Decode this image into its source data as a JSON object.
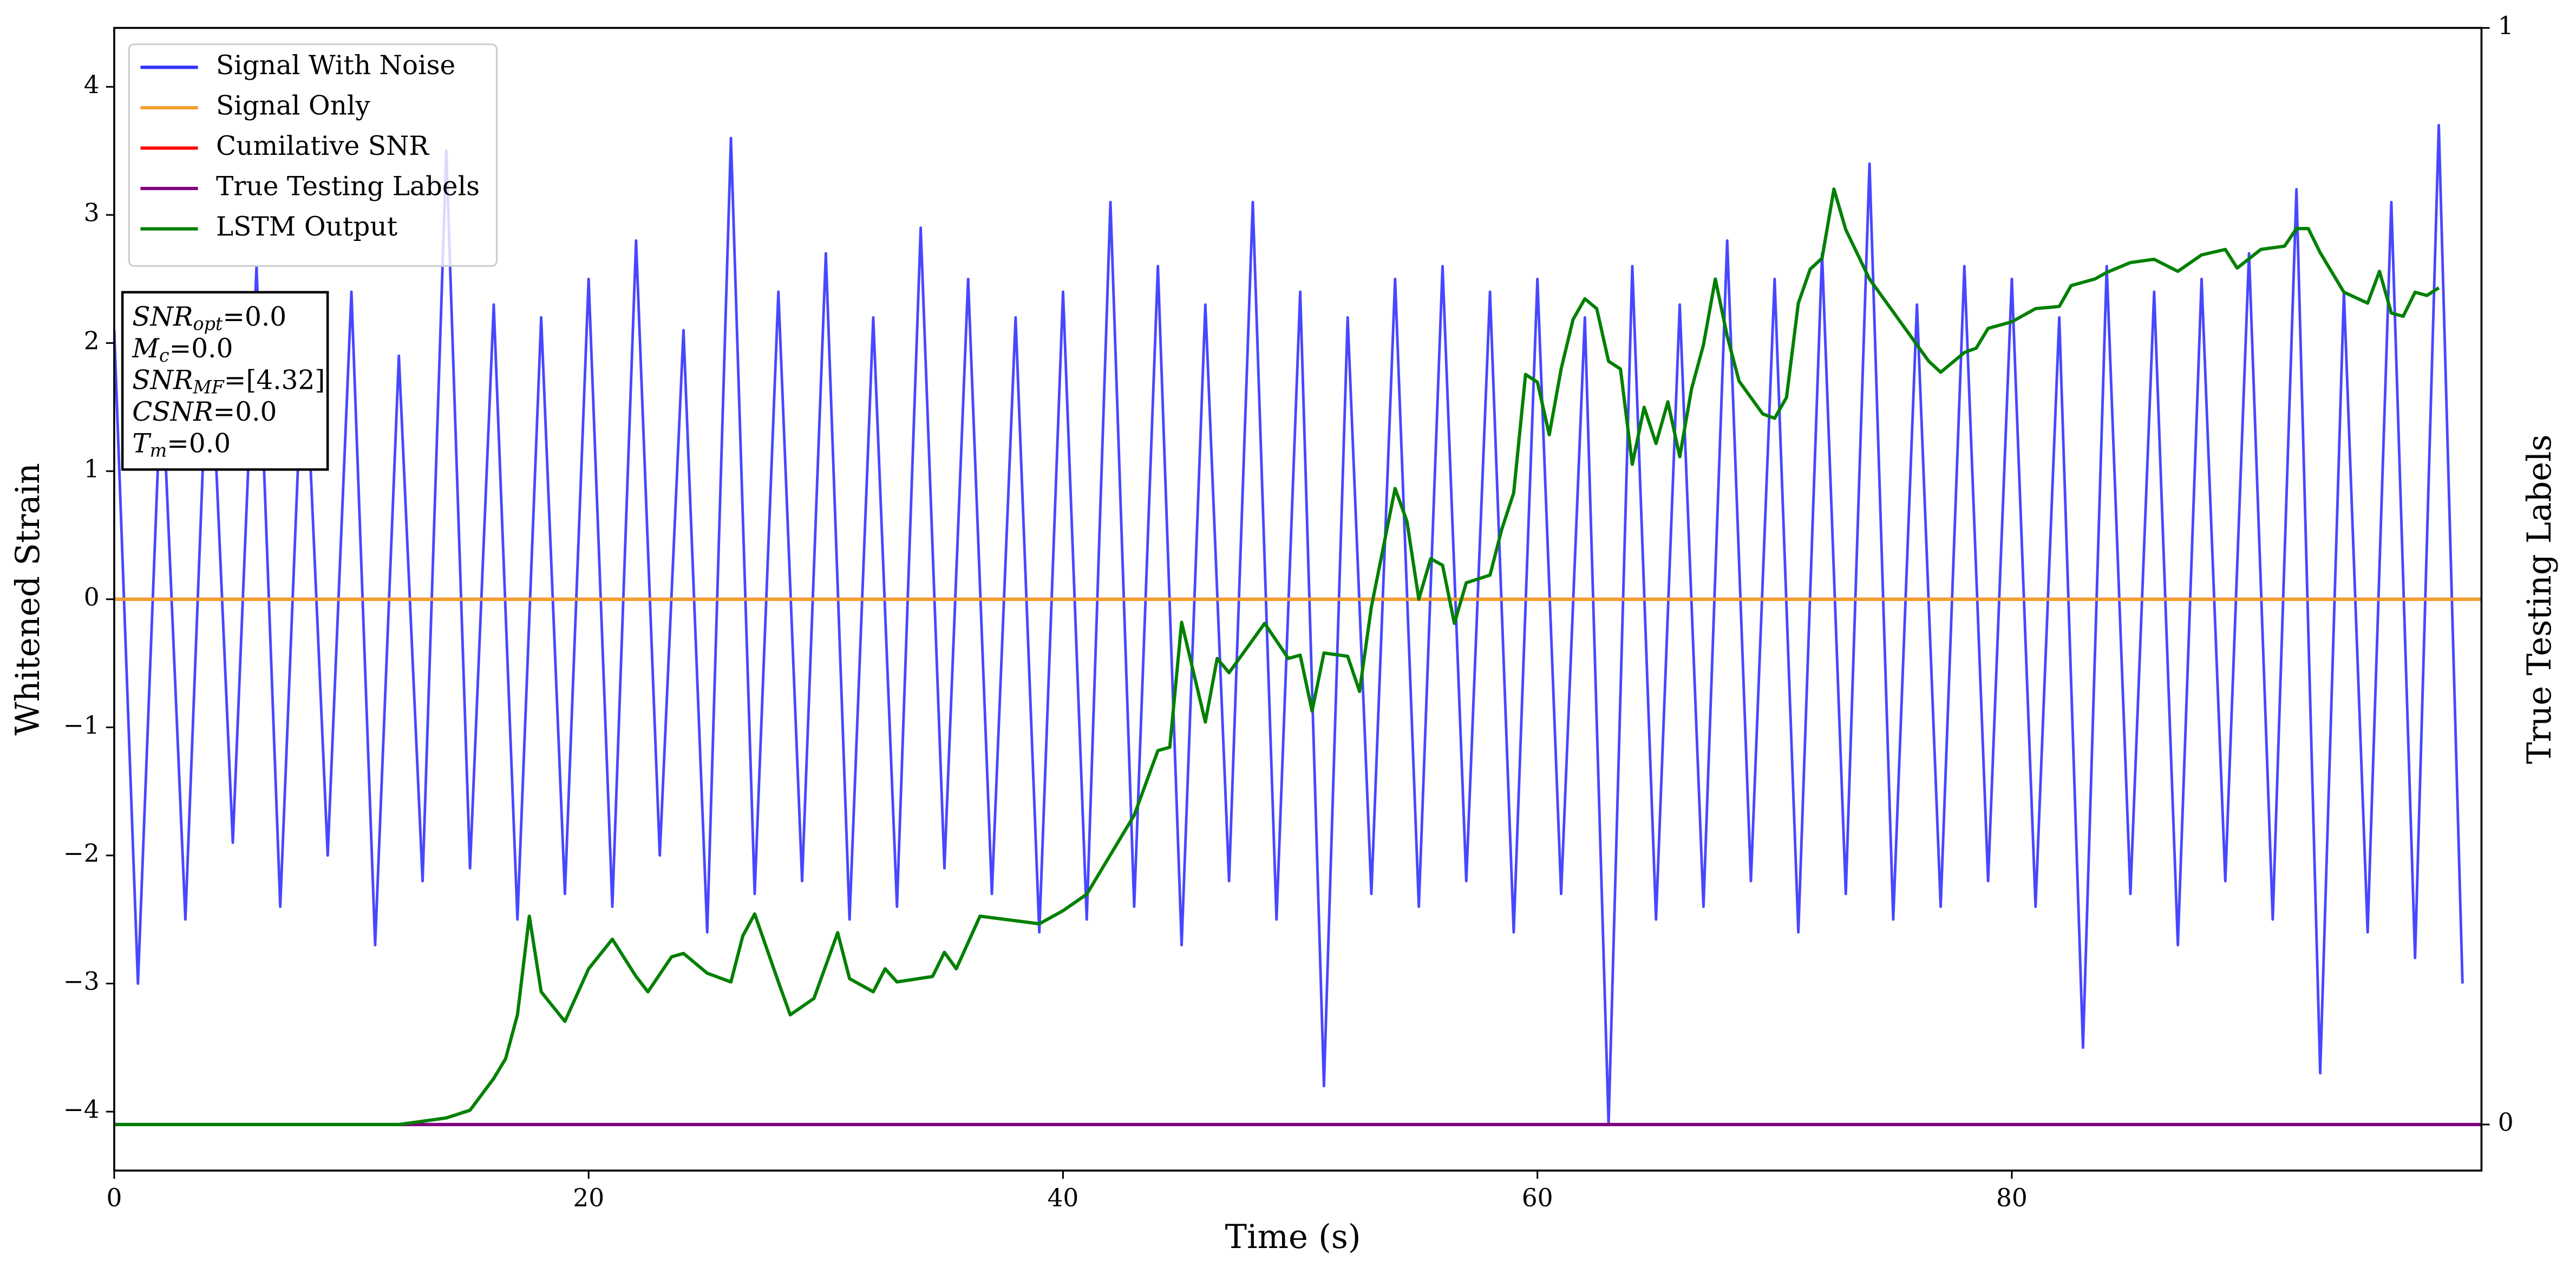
{
  "chart_data": {
    "type": "line",
    "xlabel": "Time (s)",
    "ylabel": "Whitened Strain",
    "y2label": "True Testing Labels",
    "xlim": [
      0,
      99.8
    ],
    "ylim": [
      -4.46,
      4.46
    ],
    "y2lim": [
      -0.042,
      1
    ],
    "xticks": [
      0,
      20,
      40,
      60,
      80
    ],
    "yticks": [
      {
        "value": -4,
        "label": "−4"
      },
      {
        "value": -3,
        "label": "−3"
      },
      {
        "value": -2,
        "label": "−2"
      },
      {
        "value": -1,
        "label": "−1"
      },
      0,
      1,
      2,
      3,
      4
    ],
    "y2ticks": [
      0,
      1
    ],
    "legend": "upper left",
    "annotations": [
      {
        "main": "SNR",
        "sub": "opt",
        "rest": "=0.0"
      },
      {
        "main": "M",
        "sub": "c",
        "rest": "=0.0"
      },
      {
        "main": "SNR",
        "sub": "MF",
        "rest": "=[4.32]"
      },
      {
        "main": "CSNR",
        "sub": null,
        "rest": "=0.0"
      },
      {
        "main": "T",
        "sub": "m",
        "rest": "=0.0"
      }
    ],
    "series": [
      {
        "name": "Signal With Noise",
        "color": "#3333ff",
        "x": [
          0,
          1,
          2,
          3,
          4,
          5,
          6,
          7,
          8,
          9,
          10,
          11,
          12,
          13,
          14,
          15,
          16,
          17,
          18,
          19,
          20,
          21,
          22,
          23,
          24,
          25,
          26,
          27,
          28,
          29,
          30,
          31,
          32,
          33,
          34,
          35,
          36,
          37,
          38,
          39,
          40,
          41,
          42,
          43,
          44,
          45,
          46,
          47,
          48,
          49,
          50,
          51,
          52,
          53,
          54,
          55,
          56,
          57,
          58,
          59,
          60,
          61,
          62,
          63,
          64,
          65,
          66,
          67,
          68,
          69,
          70,
          71,
          72,
          73,
          74,
          75,
          76,
          77,
          78,
          79,
          80,
          81,
          82,
          83,
          84,
          85,
          86,
          87,
          88,
          89,
          90,
          91,
          92,
          93,
          94,
          95,
          96,
          97,
          98,
          99
        ],
        "values": [
          2.1,
          -3.0,
          1.8,
          -2.5,
          2.3,
          -1.9,
          2.6,
          -2.4,
          2.2,
          -2.0,
          2.4,
          -2.7,
          1.9,
          -2.2,
          3.5,
          -2.1,
          2.3,
          -2.5,
          2.2,
          -2.3,
          2.5,
          -2.4,
          2.8,
          -2.0,
          2.1,
          -2.6,
          3.6,
          -2.3,
          2.4,
          -2.2,
          2.7,
          -2.5,
          2.2,
          -2.4,
          2.9,
          -2.1,
          2.5,
          -2.3,
          2.2,
          -2.6,
          2.4,
          -2.5,
          3.1,
          -2.4,
          2.6,
          -2.7,
          2.3,
          -2.2,
          3.1,
          -2.5,
          2.4,
          -3.8,
          2.2,
          -2.3,
          2.5,
          -2.4,
          2.6,
          -2.2,
          2.4,
          -2.6,
          2.5,
          -2.3,
          2.2,
          -4.1,
          2.6,
          -2.5,
          2.3,
          -2.4,
          2.8,
          -2.2,
          2.5,
          -2.6,
          2.7,
          -2.3,
          3.4,
          -2.5,
          2.3,
          -2.4,
          2.6,
          -2.2,
          2.5,
          -2.4,
          2.2,
          -3.5,
          2.6,
          -2.3,
          2.4,
          -2.7,
          2.5,
          -2.2,
          2.7,
          -2.5,
          3.2,
          -3.7,
          2.4,
          -2.6,
          3.1,
          -2.8,
          3.7,
          -3.0
        ]
      },
      {
        "name": "Signal Only",
        "color": "#f0a030",
        "x": [
          0,
          99.8
        ],
        "values": [
          0,
          0
        ]
      },
      {
        "name": "Cumilative SNR",
        "color": "#ff0000",
        "x": [
          0,
          99.8
        ],
        "values": [
          0,
          0
        ]
      },
      {
        "name": "True Testing Labels",
        "color": "#800080",
        "axis": "y2",
        "x": [
          0,
          99.8
        ],
        "values": [
          0,
          0
        ]
      },
      {
        "name": "LSTM Output",
        "color": "#008000",
        "axis": "y2",
        "x": [
          0,
          12,
          13,
          14,
          15,
          16,
          16.5,
          17,
          17.5,
          18,
          19,
          20,
          21,
          22,
          22.5,
          23.5,
          24,
          25,
          26,
          26.5,
          27,
          28,
          28.5,
          29.5,
          30.5,
          31,
          32,
          32.5,
          33,
          34.5,
          35,
          35.5,
          36.5,
          39,
          40,
          41,
          42,
          43,
          44,
          44.5,
          45,
          46,
          46.5,
          47,
          48.5,
          49.5,
          50,
          50.5,
          51,
          52,
          52.5,
          53,
          54,
          54.5,
          55,
          55.5,
          56,
          56.5,
          57,
          58,
          58.5,
          59,
          59.5,
          60,
          60.5,
          61,
          61.5,
          62,
          62.5,
          63,
          63.5,
          64,
          64.5,
          65,
          65.5,
          66,
          66.5,
          67,
          67.5,
          68,
          68.5,
          69.5,
          70,
          70.5,
          71,
          71.5,
          72,
          72.5,
          73,
          74,
          75,
          75.5,
          76.5,
          77,
          78,
          78.5,
          79,
          80,
          81,
          82,
          82.5,
          83.5,
          84,
          85,
          86,
          87,
          88,
          89,
          89.5,
          90.5,
          91.5,
          92,
          92.5,
          93,
          94,
          95,
          95.5,
          96,
          96.5,
          97,
          97.5,
          98
        ],
        "values": [
          0,
          0,
          0.003,
          0.006,
          0.013,
          0.042,
          0.06,
          0.1,
          0.19,
          0.121,
          0.094,
          0.142,
          0.169,
          0.135,
          0.121,
          0.153,
          0.156,
          0.138,
          0.13,
          0.172,
          0.192,
          0.13,
          0.1,
          0.115,
          0.175,
          0.133,
          0.121,
          0.142,
          0.13,
          0.135,
          0.157,
          0.142,
          0.19,
          0.183,
          0.195,
          0.21,
          0.246,
          0.282,
          0.341,
          0.344,
          0.458,
          0.367,
          0.425,
          0.412,
          0.457,
          0.425,
          0.428,
          0.377,
          0.43,
          0.427,
          0.395,
          0.472,
          0.58,
          0.55,
          0.479,
          0.516,
          0.51,
          0.457,
          0.494,
          0.501,
          0.543,
          0.576,
          0.684,
          0.677,
          0.629,
          0.689,
          0.734,
          0.753,
          0.744,
          0.696,
          0.689,
          0.602,
          0.654,
          0.621,
          0.659,
          0.609,
          0.671,
          0.711,
          0.771,
          0.719,
          0.678,
          0.648,
          0.644,
          0.663,
          0.749,
          0.78,
          0.79,
          0.853,
          0.816,
          0.771,
          0.741,
          0.726,
          0.696,
          0.686,
          0.704,
          0.708,
          0.726,
          0.732,
          0.744,
          0.746,
          0.765,
          0.771,
          0.777,
          0.786,
          0.789,
          0.778,
          0.793,
          0.798,
          0.781,
          0.798,
          0.801,
          0.817,
          0.817,
          0.795,
          0.759,
          0.749,
          0.778,
          0.74,
          0.737,
          0.759,
          0.756,
          0.763
        ]
      }
    ]
  }
}
